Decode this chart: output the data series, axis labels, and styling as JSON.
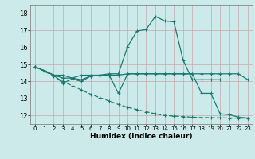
{
  "xlabel": "Humidex (Indice chaleur)",
  "xlim": [
    -0.5,
    23.5
  ],
  "ylim": [
    11.5,
    18.5
  ],
  "yticks": [
    12,
    13,
    14,
    15,
    16,
    17,
    18
  ],
  "xticks": [
    0,
    1,
    2,
    3,
    4,
    5,
    6,
    7,
    8,
    9,
    10,
    11,
    12,
    13,
    14,
    15,
    16,
    17,
    18,
    19,
    20,
    21,
    22,
    23
  ],
  "bg_color": "#cdeaea",
  "line_color": "#1a7a70",
  "grid_color_v": "#c8a8b0",
  "grid_color_h": "#c8a8b0",
  "line1_x": [
    0,
    1,
    2,
    3,
    4,
    5,
    6,
    7,
    8,
    9,
    10,
    11,
    12,
    13,
    14,
    15,
    16,
    17,
    18,
    19,
    20
  ],
  "line1_y": [
    14.85,
    14.63,
    14.37,
    14.37,
    14.2,
    14.1,
    14.32,
    14.37,
    14.45,
    14.45,
    16.05,
    16.95,
    17.05,
    17.82,
    17.55,
    17.5,
    15.25,
    14.1,
    14.1,
    14.1,
    14.1
  ],
  "line2_x": [
    0,
    1,
    2,
    3,
    4,
    5,
    6,
    7,
    8,
    9,
    10,
    11,
    12,
    13,
    14,
    15,
    16,
    17,
    18,
    19,
    20,
    21,
    22,
    23
  ],
  "line2_y": [
    14.85,
    14.63,
    14.37,
    14.2,
    14.2,
    14.37,
    14.37,
    14.37,
    14.37,
    14.37,
    14.45,
    14.45,
    14.45,
    14.45,
    14.45,
    14.45,
    14.45,
    14.45,
    14.45,
    14.45,
    14.45,
    14.45,
    14.45,
    14.1
  ],
  "line3_x": [
    0,
    1,
    2,
    3,
    4,
    5,
    6,
    7,
    8,
    9,
    10,
    11,
    12,
    13,
    14,
    15,
    16,
    17,
    18,
    19,
    20,
    21,
    22,
    23
  ],
  "line3_y": [
    14.85,
    14.63,
    14.37,
    13.9,
    14.15,
    14.0,
    14.32,
    14.37,
    14.37,
    13.3,
    14.45,
    14.45,
    14.45,
    14.45,
    14.45,
    14.45,
    14.45,
    14.45,
    13.3,
    13.3,
    12.1,
    12.05,
    11.9,
    11.85
  ],
  "line4_x": [
    0,
    1,
    2,
    3,
    4,
    5,
    6,
    7,
    8,
    9,
    10,
    11,
    12,
    13,
    14,
    15,
    16,
    17,
    18,
    19,
    20,
    21,
    22,
    23
  ],
  "line4_y": [
    14.85,
    14.6,
    14.3,
    14.0,
    13.75,
    13.5,
    13.25,
    13.05,
    12.85,
    12.65,
    12.48,
    12.35,
    12.22,
    12.1,
    12.0,
    11.97,
    11.93,
    11.9,
    11.88,
    11.87,
    11.86,
    11.85,
    11.85,
    11.84
  ]
}
